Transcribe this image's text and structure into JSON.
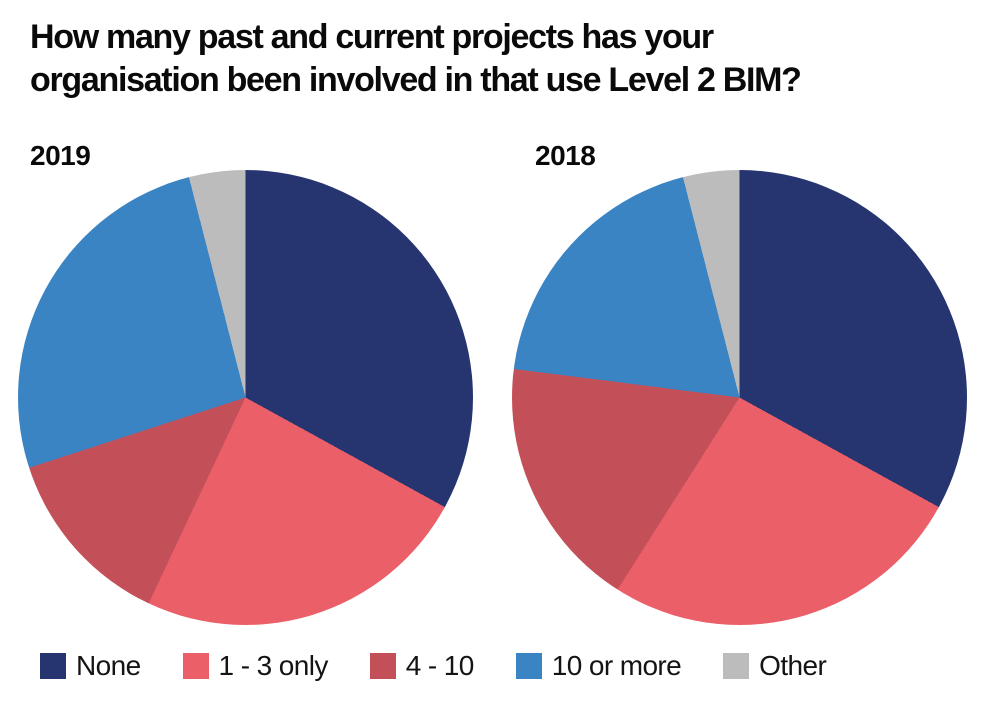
{
  "header": {
    "title": "How many past and current projects has your organisation been involved in that use Level 2 BIM?",
    "title_lines": [
      "How many past and current projects has your",
      "organisation been involved in that use Level 2 BIM?"
    ]
  },
  "chart_data": {
    "type": "pie",
    "title": "How many past and current projects has your organisation been involved in that use Level 2 BIM?",
    "legend_position": "bottom",
    "start_angle_deg": 0,
    "direction": "clockwise",
    "categories": [
      "None",
      "1 - 3 only",
      "4 - 10",
      "10 or more",
      "Other"
    ],
    "colors": [
      "#26356f",
      "#ea5f68",
      "#c35058",
      "#3a84c4",
      "#bcbcbc"
    ],
    "pies": [
      {
        "label": "2019",
        "values_percent": [
          33,
          24,
          13,
          26,
          4
        ]
      },
      {
        "label": "2018",
        "values_percent": [
          33,
          26,
          18,
          19,
          4
        ]
      }
    ]
  }
}
